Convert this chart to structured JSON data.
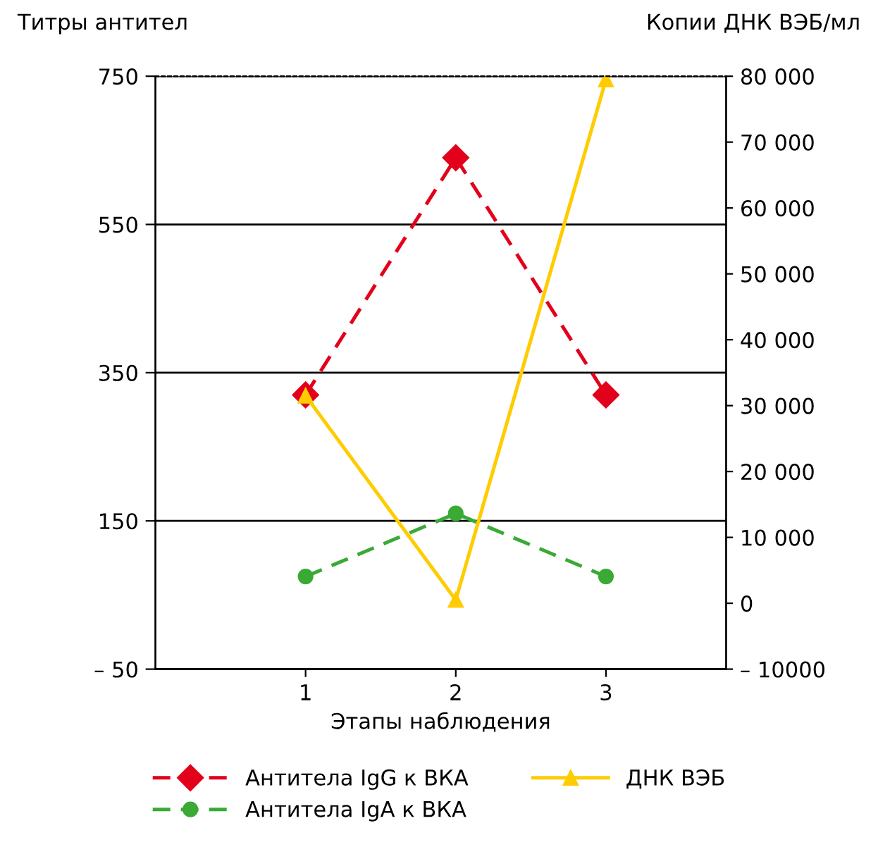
{
  "chart_data": {
    "type": "line",
    "ylabel": "Титры антител",
    "y2label": "Копии ДНК ВЭБ/мл",
    "xlabel": "Этапы наблюдения",
    "x": [
      1,
      2,
      3
    ],
    "xlim": [
      0,
      3.8
    ],
    "xticks": [
      1,
      2,
      3
    ],
    "ylim": [
      -50,
      750
    ],
    "yticks": [
      {
        "value": -50,
        "label": "– 50"
      },
      150,
      350,
      550,
      750
    ],
    "y2lim": [
      -10000,
      80000
    ],
    "y2ticks": [
      {
        "value": -10000,
        "label": "– 10000"
      },
      0,
      {
        "value": 10000,
        "label": "10 000"
      },
      {
        "value": 20000,
        "label": "20 000"
      },
      {
        "value": 30000,
        "label": "30 000"
      },
      {
        "value": 40000,
        "label": "40 000"
      },
      {
        "value": 50000,
        "label": "50 000"
      },
      {
        "value": 60000,
        "label": "60 000"
      },
      {
        "value": 70000,
        "label": "70 000"
      },
      {
        "value": 80000,
        "label": "80 000"
      }
    ],
    "grid": "y",
    "legend": "bottom",
    "series": [
      {
        "name": "Антитела IgG к ВКА",
        "color": "#e3001b",
        "values": [
          320,
          640,
          320
        ],
        "marker": "diamond",
        "line_style": "dashed"
      },
      {
        "name": "Антитела IgA к ВКА",
        "color": "#3aaa35",
        "values": [
          75,
          160,
          75
        ],
        "marker": "circle",
        "line_style": "dashed"
      },
      {
        "name": "ДНК ВЭБ",
        "color": "#ffcc00",
        "values": [
          31500,
          500,
          79500
        ],
        "marker": "triangle",
        "line_style": "solid",
        "axis": "y2"
      }
    ]
  }
}
